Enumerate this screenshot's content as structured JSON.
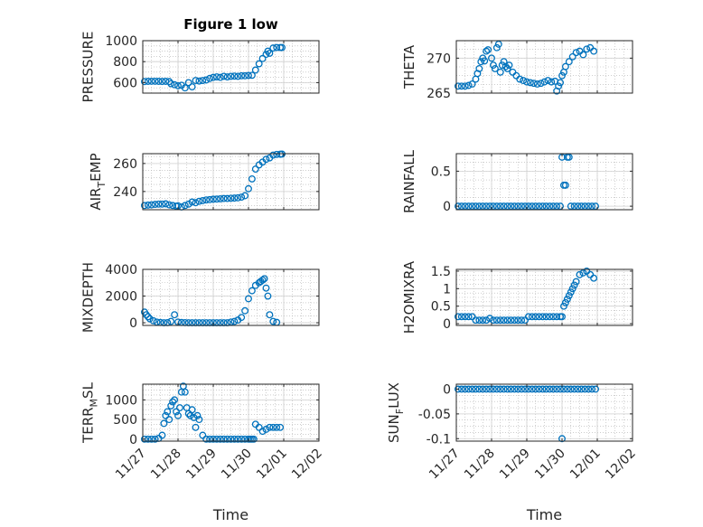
{
  "figure": {
    "background": "#ffffff",
    "marker_color": "#0072bd",
    "grid_color": "#b0b0b0"
  },
  "chart_data": [
    {
      "type": "scatter",
      "title": "Figure 1 low",
      "ylabel": "PRESSURE",
      "xlabel": "",
      "x_tick_labels": [],
      "y_ticks": [
        600,
        800,
        1000
      ],
      "y_tick_labels": [
        "600",
        "800",
        "1000"
      ],
      "xlim": [
        0,
        5
      ],
      "ylim": [
        500,
        1000
      ],
      "grid": true,
      "x": [
        0.05,
        0.15,
        0.25,
        0.35,
        0.45,
        0.55,
        0.65,
        0.75,
        0.8,
        0.9,
        1.0,
        1.1,
        1.2,
        1.3,
        1.4,
        1.5,
        1.6,
        1.7,
        1.8,
        1.9,
        2.0,
        2.1,
        2.2,
        2.3,
        2.4,
        2.5,
        2.6,
        2.7,
        2.8,
        2.9,
        3.0,
        3.1,
        3.2,
        3.3,
        3.4,
        3.5,
        3.55,
        3.6,
        3.7,
        3.8,
        3.9,
        3.95
      ],
      "y": [
        610,
        612,
        613,
        613,
        612,
        611,
        612,
        610,
        590,
        580,
        570,
        575,
        550,
        600,
        560,
        620,
        615,
        620,
        625,
        640,
        650,
        655,
        650,
        660,
        655,
        660,
        662,
        660,
        665,
        665,
        668,
        670,
        720,
        780,
        830,
        870,
        900,
        880,
        930,
        935,
        935,
        935
      ]
    },
    {
      "type": "scatter",
      "title": "",
      "ylabel": "THETA",
      "xlabel": "",
      "x_tick_labels": [],
      "y_ticks": [
        265,
        270
      ],
      "y_tick_labels": [
        "265",
        "270"
      ],
      "xlim": [
        0,
        5
      ],
      "ylim": [
        265,
        272.5
      ],
      "grid": true,
      "x": [
        0.05,
        0.15,
        0.25,
        0.35,
        0.45,
        0.55,
        0.6,
        0.65,
        0.7,
        0.75,
        0.8,
        0.85,
        0.9,
        1.0,
        1.05,
        1.1,
        1.15,
        1.2,
        1.25,
        1.3,
        1.35,
        1.4,
        1.45,
        1.5,
        1.6,
        1.7,
        1.8,
        1.9,
        2.0,
        2.1,
        2.2,
        2.3,
        2.4,
        2.5,
        2.6,
        2.7,
        2.8,
        2.85,
        2.9,
        2.95,
        3.0,
        3.05,
        3.1,
        3.2,
        3.3,
        3.4,
        3.5,
        3.6,
        3.7,
        3.8,
        3.9
      ],
      "y": [
        266,
        266,
        266,
        266.1,
        266.3,
        267,
        267.8,
        268.5,
        269.5,
        270,
        269.6,
        271,
        271.2,
        270,
        269,
        268.5,
        271.5,
        272,
        268,
        269,
        269.5,
        268.8,
        268.5,
        269,
        268,
        267.5,
        267,
        266.8,
        266.6,
        266.5,
        266.4,
        266.3,
        266.4,
        266.6,
        266.8,
        266.6,
        266.7,
        265.3,
        266,
        266.5,
        267.5,
        268,
        268.8,
        269.5,
        270.2,
        270.8,
        271,
        270.5,
        271.3,
        271.5,
        271
      ]
    },
    {
      "type": "scatter",
      "title": "",
      "ylabel": "AIR_TEMP",
      "xlabel": "",
      "x_tick_labels": [],
      "y_ticks": [
        240,
        260
      ],
      "y_tick_labels": [
        "240",
        "260"
      ],
      "xlim": [
        0,
        5
      ],
      "ylim": [
        227,
        267
      ],
      "grid": true,
      "x": [
        0.05,
        0.15,
        0.25,
        0.35,
        0.45,
        0.55,
        0.65,
        0.75,
        0.85,
        0.95,
        1.0,
        1.1,
        1.2,
        1.3,
        1.4,
        1.5,
        1.6,
        1.7,
        1.8,
        1.9,
        2.0,
        2.1,
        2.2,
        2.3,
        2.4,
        2.5,
        2.6,
        2.7,
        2.8,
        2.9,
        3.0,
        3.1,
        3.2,
        3.3,
        3.4,
        3.5,
        3.6,
        3.7,
        3.8,
        3.9,
        3.95
      ],
      "y": [
        230,
        230.3,
        230.5,
        230.8,
        231,
        231,
        231.2,
        230.5,
        230,
        229.5,
        229.8,
        229,
        230,
        231,
        232.5,
        232,
        233,
        233.5,
        234,
        234.2,
        234.5,
        234.6,
        234.8,
        235,
        235,
        235.2,
        235.3,
        235.5,
        236,
        237,
        242,
        249,
        256,
        259,
        261,
        263,
        264,
        266,
        266.5,
        266.6,
        266.7
      ]
    },
    {
      "type": "scatter",
      "title": "",
      "ylabel": "RAINFALL",
      "xlabel": "",
      "x_tick_labels": [],
      "y_ticks": [
        0,
        0.5
      ],
      "y_tick_labels": [
        "0",
        "0.5"
      ],
      "xlim": [
        0,
        5
      ],
      "ylim": [
        -0.05,
        0.75
      ],
      "grid": true,
      "x": [
        0.05,
        0.15,
        0.25,
        0.35,
        0.45,
        0.55,
        0.65,
        0.75,
        0.85,
        0.95,
        1.05,
        1.15,
        1.25,
        1.35,
        1.45,
        1.55,
        1.65,
        1.75,
        1.85,
        1.95,
        2.05,
        2.15,
        2.25,
        2.35,
        2.45,
        2.55,
        2.65,
        2.75,
        2.85,
        2.95,
        3.0,
        3.05,
        3.1,
        3.15,
        3.2,
        3.25,
        3.35,
        3.45,
        3.55,
        3.65,
        3.75,
        3.85,
        3.95
      ],
      "y": [
        0,
        0,
        0,
        0,
        0,
        0,
        0,
        0,
        0,
        0,
        0,
        0,
        0,
        0,
        0,
        0,
        0,
        0,
        0,
        0,
        0,
        0,
        0,
        0,
        0,
        0,
        0,
        0,
        0,
        0,
        0.7,
        0.3,
        0.3,
        0.7,
        0.7,
        0,
        0,
        0,
        0,
        0,
        0,
        0,
        0
      ]
    },
    {
      "type": "scatter",
      "title": "",
      "ylabel": "MIXDEPTH",
      "xlabel": "",
      "x_tick_labels": [],
      "y_ticks": [
        0,
        2000,
        4000
      ],
      "y_tick_labels": [
        "0",
        "2000",
        "4000"
      ],
      "xlim": [
        0,
        5
      ],
      "ylim": [
        -200,
        4000
      ],
      "grid": true,
      "x": [
        0.05,
        0.1,
        0.15,
        0.2,
        0.3,
        0.4,
        0.5,
        0.6,
        0.7,
        0.8,
        0.9,
        1.0,
        1.1,
        1.2,
        1.3,
        1.4,
        1.5,
        1.6,
        1.7,
        1.8,
        1.9,
        2.0,
        2.1,
        2.2,
        2.3,
        2.4,
        2.5,
        2.6,
        2.7,
        2.8,
        2.9,
        3.0,
        3.1,
        3.2,
        3.3,
        3.35,
        3.4,
        3.45,
        3.5,
        3.55,
        3.6,
        3.7,
        3.8
      ],
      "y": [
        800,
        600,
        450,
        300,
        150,
        50,
        20,
        0,
        10,
        100,
        600,
        50,
        20,
        10,
        0,
        0,
        0,
        0,
        0,
        0,
        0,
        0,
        0,
        0,
        0,
        0,
        50,
        100,
        200,
        400,
        900,
        1800,
        2400,
        2800,
        3000,
        3100,
        3200,
        3300,
        2600,
        2000,
        600,
        100,
        30
      ]
    },
    {
      "type": "scatter",
      "title": "",
      "ylabel": "H2OMIXRA",
      "xlabel": "",
      "x_tick_labels": [],
      "y_ticks": [
        0,
        0.5,
        1,
        1.5
      ],
      "y_tick_labels": [
        "0",
        "0.5",
        "1",
        "1.5"
      ],
      "xlim": [
        0,
        5
      ],
      "ylim": [
        -0.05,
        1.55
      ],
      "grid": true,
      "x": [
        0.05,
        0.15,
        0.25,
        0.35,
        0.45,
        0.55,
        0.65,
        0.75,
        0.85,
        0.95,
        1.05,
        1.15,
        1.25,
        1.35,
        1.45,
        1.55,
        1.65,
        1.75,
        1.85,
        1.95,
        2.05,
        2.15,
        2.25,
        2.35,
        2.45,
        2.55,
        2.65,
        2.75,
        2.85,
        2.95,
        3.0,
        3.05,
        3.1,
        3.15,
        3.2,
        3.25,
        3.3,
        3.35,
        3.4,
        3.5,
        3.6,
        3.7,
        3.8,
        3.9
      ],
      "y": [
        0.2,
        0.2,
        0.2,
        0.2,
        0.2,
        0.1,
        0.1,
        0.1,
        0.1,
        0.15,
        0.1,
        0.1,
        0.1,
        0.1,
        0.1,
        0.1,
        0.1,
        0.1,
        0.1,
        0.1,
        0.2,
        0.2,
        0.2,
        0.2,
        0.2,
        0.2,
        0.2,
        0.2,
        0.2,
        0.2,
        0.2,
        0.5,
        0.6,
        0.7,
        0.8,
        0.9,
        1.0,
        1.1,
        1.2,
        1.4,
        1.45,
        1.5,
        1.4,
        1.3
      ]
    },
    {
      "type": "scatter",
      "title": "",
      "ylabel": "TERR_MSL",
      "xlabel": "Time",
      "x_tick_labels": [
        "11/27",
        "11/28",
        "11/29",
        "11/30",
        "12/01",
        "12/02"
      ],
      "y_ticks": [
        0,
        500,
        1000
      ],
      "y_tick_labels": [
        "0",
        "500",
        "1000"
      ],
      "xlim": [
        0,
        5
      ],
      "ylim": [
        -50,
        1400
      ],
      "grid": true,
      "x": [
        0.05,
        0.15,
        0.25,
        0.35,
        0.45,
        0.55,
        0.6,
        0.65,
        0.7,
        0.75,
        0.8,
        0.85,
        0.9,
        0.95,
        1.0,
        1.05,
        1.1,
        1.15,
        1.2,
        1.25,
        1.3,
        1.35,
        1.4,
        1.45,
        1.5,
        1.55,
        1.6,
        1.7,
        1.8,
        1.9,
        2.0,
        2.1,
        2.2,
        2.3,
        2.4,
        2.5,
        2.6,
        2.7,
        2.8,
        2.9,
        3.0,
        3.05,
        3.1,
        3.15,
        3.2,
        3.3,
        3.4,
        3.5,
        3.6,
        3.7,
        3.8,
        3.9
      ],
      "y": [
        0,
        0,
        0,
        0,
        20,
        100,
        400,
        600,
        700,
        500,
        850,
        950,
        1000,
        700,
        600,
        800,
        1200,
        1350,
        1200,
        800,
        650,
        600,
        750,
        550,
        300,
        600,
        500,
        100,
        0,
        0,
        0,
        0,
        0,
        0,
        0,
        0,
        0,
        0,
        0,
        0,
        0,
        0,
        0,
        0,
        380,
        300,
        200,
        250,
        300,
        300,
        300,
        300
      ]
    },
    {
      "type": "scatter",
      "title": "",
      "ylabel": "SUN_FLUX",
      "xlabel": "Time",
      "x_tick_labels": [
        "11/27",
        "11/28",
        "11/29",
        "11/30",
        "12/01",
        "12/02"
      ],
      "y_ticks": [
        -0.1,
        -0.05,
        0
      ],
      "y_tick_labels": [
        "-0.1",
        "-0.05",
        "0"
      ],
      "xlim": [
        0,
        5
      ],
      "ylim": [
        -0.105,
        0.01
      ],
      "grid": true,
      "x": [
        0.05,
        0.15,
        0.25,
        0.35,
        0.45,
        0.55,
        0.65,
        0.75,
        0.85,
        0.95,
        1.05,
        1.15,
        1.25,
        1.35,
        1.45,
        1.55,
        1.65,
        1.75,
        1.85,
        1.95,
        2.05,
        2.15,
        2.25,
        2.35,
        2.45,
        2.55,
        2.65,
        2.75,
        2.85,
        2.95,
        3.0,
        3.05,
        3.15,
        3.25,
        3.35,
        3.45,
        3.55,
        3.65,
        3.75,
        3.85,
        3.95
      ],
      "y": [
        0,
        0,
        0,
        0,
        0,
        0,
        0,
        0,
        0,
        0,
        0,
        0,
        0,
        0,
        0,
        0,
        0,
        0,
        0,
        0,
        0,
        0,
        0,
        0,
        0,
        0,
        0,
        0,
        0,
        0,
        -0.1,
        0,
        0,
        0,
        0,
        0,
        0,
        0,
        0,
        0,
        0
      ]
    }
  ]
}
